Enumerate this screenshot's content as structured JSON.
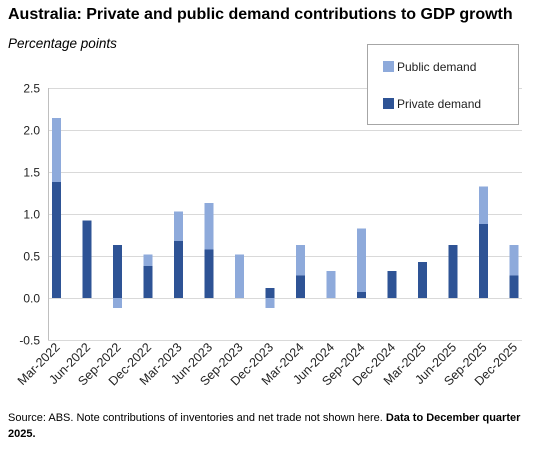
{
  "chart_data": {
    "type": "bar",
    "stacked": true,
    "title": "Australia: Private and public demand contributions to GDP growth",
    "ylabel": "Percentage points",
    "xlabel": "",
    "categories": [
      "Mar-2022",
      "Jun-2022",
      "Sep-2022",
      "Dec-2022",
      "Mar-2023",
      "Jun-2023",
      "Sep-2023",
      "Dec-2023",
      "Mar-2024",
      "Jun-2024",
      "Sep-2024",
      "Dec-2024",
      "Mar-2025",
      "Jun-2025",
      "Sep-2025",
      "Dec-2025"
    ],
    "series": [
      {
        "name": "Private demand",
        "color": "#2e5395",
        "values": [
          1.38,
          0.92,
          0.63,
          0.38,
          0.68,
          0.58,
          0.0,
          0.12,
          0.27,
          0.0,
          0.07,
          0.32,
          0.43,
          0.63,
          0.88,
          0.27
        ]
      },
      {
        "name": "Public demand",
        "color": "#8eaadb",
        "values": [
          0.76,
          0.0,
          -0.12,
          0.14,
          0.35,
          0.55,
          0.52,
          -0.12,
          0.36,
          0.32,
          0.76,
          0.0,
          0.0,
          0.0,
          0.45,
          0.36
        ]
      }
    ],
    "ylim": [
      -0.5,
      2.5
    ],
    "y_tick_labels": [
      "2.5",
      "2.0",
      "1.5",
      "1.0",
      "0.5",
      "0.0",
      "-0.5"
    ],
    "grid": true,
    "legend_placement": "top-right"
  },
  "source_note": {
    "text": "Source: ABS. Note contributions of inventories and net trade not shown here.",
    "bold": "Data to December quarter 2025."
  }
}
